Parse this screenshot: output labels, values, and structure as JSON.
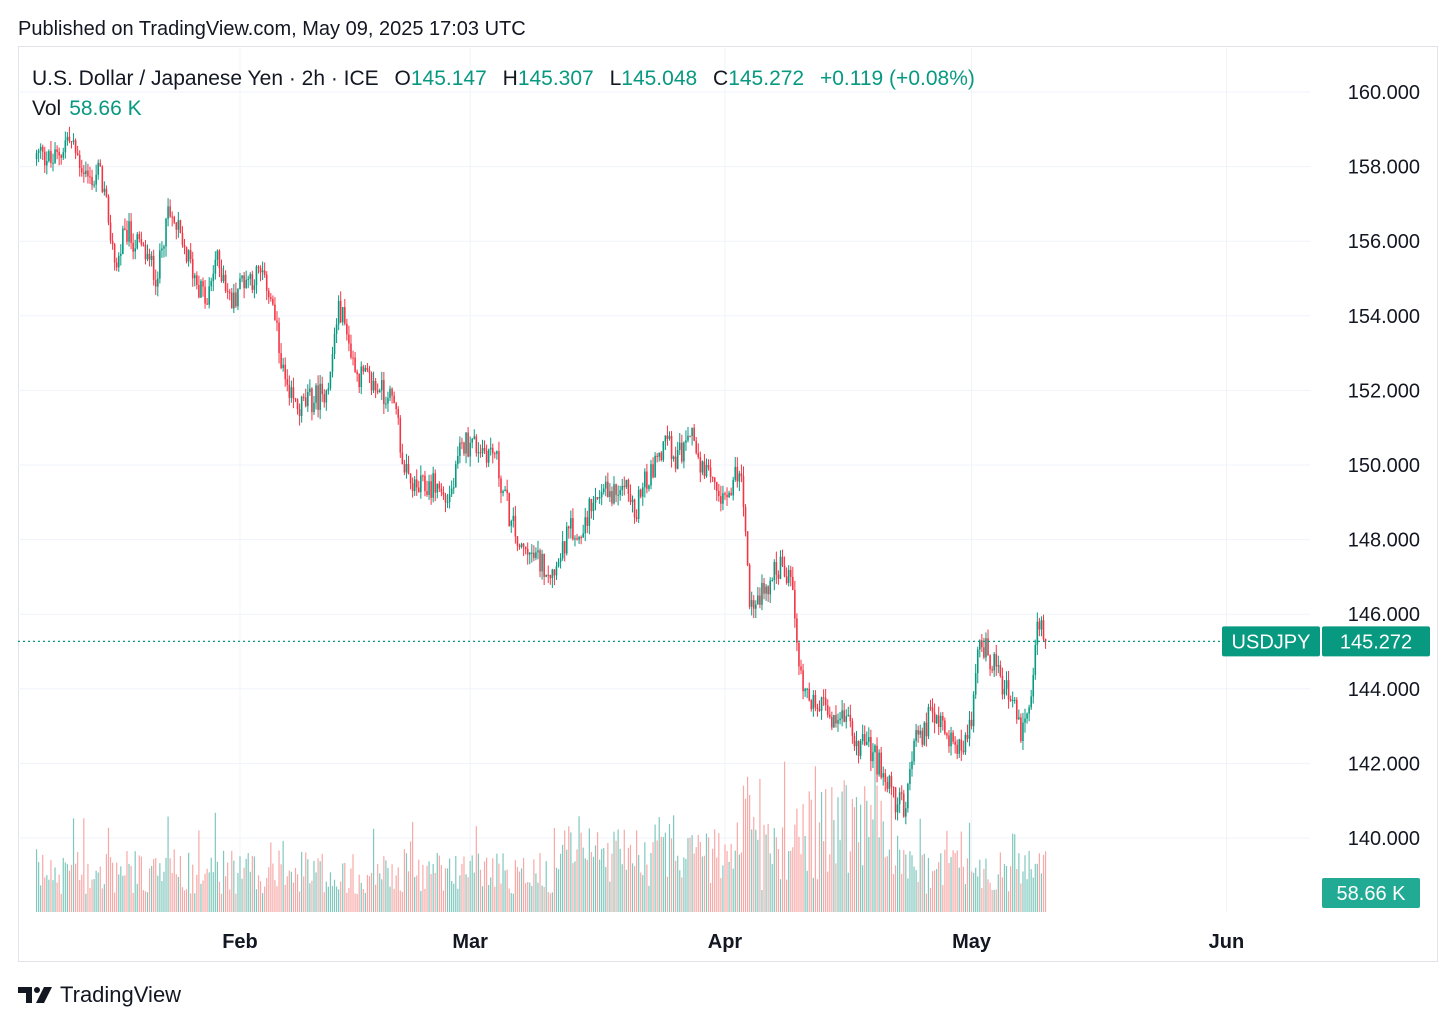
{
  "header": {
    "published": "Published on TradingView.com, May 09, 2025 17:03 UTC"
  },
  "legend": {
    "symbol_desc": "U.S. Dollar / Japanese Yen · 2h · ICE",
    "o_label": "O",
    "o_value": "145.147",
    "h_label": "H",
    "h_value": "145.307",
    "l_label": "L",
    "l_value": "145.048",
    "c_label": "C",
    "c_value": "145.272",
    "change": "+0.119 (+0.08%)",
    "vol_label": "Vol",
    "vol_value": "58.66 K"
  },
  "badges": {
    "symbol": "USDJPY",
    "price": "145.272",
    "volume": "58.66 K"
  },
  "footer": {
    "brand": "TradingView"
  },
  "colors": {
    "up": "#089981",
    "down": "#f23645",
    "up_vol": "#80c8bd",
    "down_vol": "#f7a9a7",
    "grid": "#f0f3fa"
  },
  "chart_data": {
    "type": "candlestick",
    "symbol": "USDJPY",
    "interval": "2h",
    "y_ticks": [
      "160.000",
      "158.000",
      "156.000",
      "154.000",
      "152.000",
      "150.000",
      "148.000",
      "146.000",
      "144.000",
      "142.000",
      "140.000"
    ],
    "ylim": [
      138.5,
      161.0
    ],
    "x_ticks": [
      "Feb",
      "Mar",
      "Apr",
      "May",
      "Jun"
    ],
    "last_price": 145.272,
    "path": [
      [
        "2025-01-06",
        158.2
      ],
      [
        "2025-01-07",
        158.4
      ],
      [
        "2025-01-08",
        158.1
      ],
      [
        "2025-01-09",
        158.3
      ],
      [
        "2025-01-10",
        158.8
      ],
      [
        "2025-01-13",
        157.5
      ],
      [
        "2025-01-14",
        158.0
      ],
      [
        "2025-01-15",
        156.5
      ],
      [
        "2025-01-16",
        155.3
      ],
      [
        "2025-01-17",
        156.3
      ],
      [
        "2025-01-20",
        155.5
      ],
      [
        "2025-01-21",
        155.0
      ],
      [
        "2025-01-22",
        156.6
      ],
      [
        "2025-01-23",
        156.5
      ],
      [
        "2025-01-24",
        155.9
      ],
      [
        "2025-01-27",
        154.3
      ],
      [
        "2025-01-28",
        155.5
      ],
      [
        "2025-01-29",
        155.1
      ],
      [
        "2025-01-30",
        154.2
      ],
      [
        "2025-01-31",
        155.0
      ],
      [
        "2025-02-03",
        155.1
      ],
      [
        "2025-02-04",
        154.3
      ],
      [
        "2025-02-05",
        152.6
      ],
      [
        "2025-02-06",
        151.8
      ],
      [
        "2025-02-07",
        151.5
      ],
      [
        "2025-02-10",
        151.9
      ],
      [
        "2025-02-11",
        152.5
      ],
      [
        "2025-02-12",
        154.4
      ],
      [
        "2025-02-13",
        153.5
      ],
      [
        "2025-02-14",
        152.5
      ],
      [
        "2025-02-17",
        152.0
      ],
      [
        "2025-02-18",
        151.8
      ],
      [
        "2025-02-19",
        151.5
      ],
      [
        "2025-02-20",
        149.8
      ],
      [
        "2025-02-21",
        149.3
      ],
      [
        "2025-02-24",
        149.5
      ],
      [
        "2025-02-25",
        149.0
      ],
      [
        "2025-02-26",
        149.4
      ],
      [
        "2025-02-27",
        150.6
      ],
      [
        "2025-02-28",
        150.6
      ],
      [
        "2025-03-03",
        150.3
      ],
      [
        "2025-03-04",
        149.3
      ],
      [
        "2025-03-05",
        148.5
      ],
      [
        "2025-03-06",
        147.8
      ],
      [
        "2025-03-07",
        147.6
      ],
      [
        "2025-03-10",
        147.2
      ],
      [
        "2025-03-11",
        147.5
      ],
      [
        "2025-03-12",
        148.3
      ],
      [
        "2025-03-13",
        148.0
      ],
      [
        "2025-03-14",
        148.6
      ],
      [
        "2025-03-17",
        149.3
      ],
      [
        "2025-03-18",
        149.2
      ],
      [
        "2025-03-19",
        149.6
      ],
      [
        "2025-03-20",
        148.6
      ],
      [
        "2025-03-21",
        149.4
      ],
      [
        "2025-03-24",
        150.7
      ],
      [
        "2025-03-25",
        149.9
      ],
      [
        "2025-03-26",
        150.6
      ],
      [
        "2025-03-27",
        151.0
      ],
      [
        "2025-03-28",
        149.8
      ],
      [
        "2025-03-31",
        149.2
      ],
      [
        "2025-04-01",
        149.6
      ],
      [
        "2025-04-02",
        149.7
      ],
      [
        "2025-04-03",
        146.2
      ],
      [
        "2025-04-04",
        146.5
      ],
      [
        "2025-04-07",
        147.3
      ],
      [
        "2025-04-08",
        147.0
      ],
      [
        "2025-04-09",
        144.6
      ],
      [
        "2025-04-10",
        144.0
      ],
      [
        "2025-04-11",
        143.5
      ],
      [
        "2025-04-14",
        143.2
      ],
      [
        "2025-04-15",
        143.3
      ],
      [
        "2025-04-16",
        142.6
      ],
      [
        "2025-04-17",
        142.5
      ],
      [
        "2025-04-18",
        142.3
      ],
      [
        "2025-04-21",
        140.9
      ],
      [
        "2025-04-22",
        140.8
      ],
      [
        "2025-04-23",
        142.6
      ],
      [
        "2025-04-24",
        142.5
      ],
      [
        "2025-04-25",
        143.5
      ],
      [
        "2025-04-28",
        142.5
      ],
      [
        "2025-04-29",
        142.3
      ],
      [
        "2025-04-30",
        143.0
      ],
      [
        "2025-05-01",
        145.3
      ],
      [
        "2025-05-02",
        144.9
      ],
      [
        "2025-05-05",
        143.7
      ],
      [
        "2025-05-06",
        142.6
      ],
      [
        "2025-05-07",
        143.5
      ],
      [
        "2025-05-08",
        145.8
      ],
      [
        "2025-05-09",
        145.27
      ]
    ]
  }
}
